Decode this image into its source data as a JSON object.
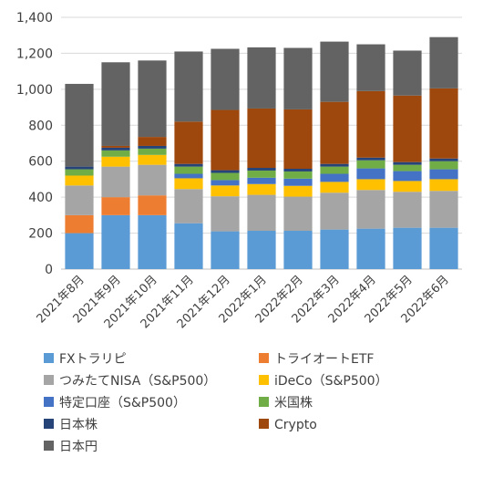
{
  "chart_data": {
    "type": "bar",
    "stacked": true,
    "title": "",
    "xlabel": "",
    "ylabel": "",
    "ylim": [
      0,
      1400
    ],
    "yticks": [
      0,
      200,
      400,
      600,
      800,
      1000,
      1200,
      1400
    ],
    "ytick_labels": [
      "0",
      "200",
      "400",
      "600",
      "800",
      "1,000",
      "1,200",
      "1,400"
    ],
    "grid": true,
    "legend_position": "bottom",
    "categories": [
      "2021年8月",
      "2021年9月",
      "2021年10月",
      "2021年11月",
      "2021年12月",
      "2022年1月",
      "2022年2月",
      "2022年3月",
      "2022年4月",
      "2022年5月",
      "2022年6月"
    ],
    "series": [
      {
        "name": "FXトラリピ",
        "color": "#5b9bd5",
        "values": [
          200,
          300,
          300,
          255,
          210,
          213,
          213,
          220,
          225,
          230,
          230
        ]
      },
      {
        "name": "トライオートETF",
        "color": "#ed7d31",
        "values": [
          100,
          100,
          110,
          0,
          0,
          0,
          0,
          0,
          0,
          0,
          0
        ]
      },
      {
        "name": "つみたてNISA（S&P500）",
        "color": "#a5a5a5",
        "values": [
          165,
          170,
          170,
          190,
          195,
          200,
          190,
          205,
          215,
          200,
          205
        ]
      },
      {
        "name": "iDeCo（S&P500）",
        "color": "#ffc000",
        "values": [
          55,
          55,
          55,
          60,
          60,
          60,
          60,
          60,
          60,
          60,
          65
        ]
      },
      {
        "name": "特定口座（S&P500）",
        "color": "#4472c4",
        "values": [
          0,
          0,
          0,
          25,
          30,
          35,
          40,
          45,
          60,
          55,
          55
        ]
      },
      {
        "name": "米国株",
        "color": "#70ad47",
        "values": [
          35,
          35,
          35,
          40,
          40,
          40,
          40,
          40,
          45,
          35,
          45
        ]
      },
      {
        "name": "日本株",
        "color": "#264478",
        "values": [
          15,
          15,
          15,
          15,
          15,
          15,
          15,
          15,
          15,
          15,
          15
        ]
      },
      {
        "name": "Crypto",
        "color": "#9e480e",
        "values": [
          0,
          10,
          50,
          235,
          335,
          330,
          330,
          345,
          370,
          370,
          390
        ]
      },
      {
        "name": "日本円",
        "color": "#636363",
        "values": [
          460,
          465,
          425,
          390,
          340,
          340,
          342,
          335,
          260,
          250,
          285
        ]
      }
    ]
  }
}
